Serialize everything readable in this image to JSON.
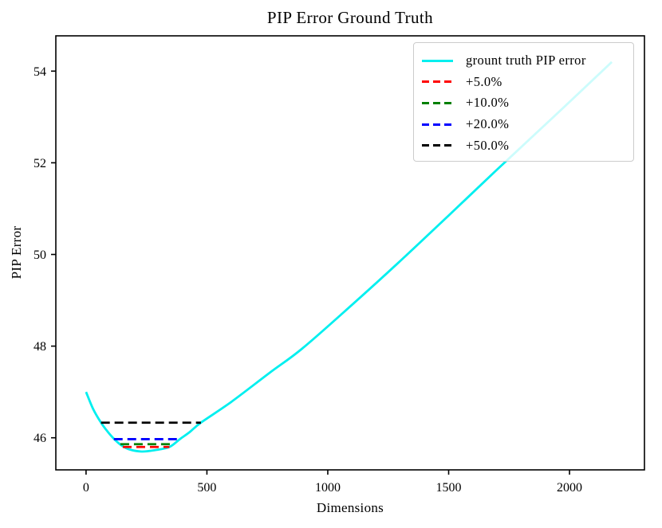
{
  "figure": {
    "background": "#ffffff",
    "text_color": "#000000"
  },
  "chart_data": {
    "type": "line",
    "title": "PIP Error Ground Truth",
    "xlabel": "Dimensions",
    "ylabel": "PIP Error",
    "x_ticks": [
      0,
      500,
      1000,
      1500,
      2000
    ],
    "y_ticks": [
      46,
      48,
      50,
      52,
      54
    ],
    "xlim": [
      -125,
      2310
    ],
    "ylim": [
      45.3,
      54.77
    ],
    "grid": false,
    "legend_position": "upper right",
    "series": [
      {
        "name": "grount truth PIP error",
        "kind": "curve",
        "color": "#00efef",
        "line_style": "solid",
        "points": [
          [
            0,
            47.0
          ],
          [
            30,
            46.62
          ],
          [
            62,
            46.33
          ],
          [
            90,
            46.13
          ],
          [
            115,
            45.98
          ],
          [
            145,
            45.84
          ],
          [
            180,
            45.745
          ],
          [
            230,
            45.7
          ],
          [
            285,
            45.73
          ],
          [
            345,
            45.8
          ],
          [
            388,
            45.97
          ],
          [
            430,
            46.13
          ],
          [
            475,
            46.33
          ],
          [
            600,
            46.78
          ],
          [
            760,
            47.42
          ],
          [
            895,
            47.95
          ],
          [
            1100,
            48.9
          ],
          [
            1290,
            49.81
          ],
          [
            1500,
            50.85
          ],
          [
            1700,
            51.85
          ],
          [
            1950,
            53.08
          ],
          [
            2175,
            54.2
          ]
        ]
      },
      {
        "name": "+5.0%",
        "kind": "hline",
        "color": "#ff0000",
        "line_style": "dashed",
        "level": 45.8,
        "x_range": [
          152,
          345
        ]
      },
      {
        "name": "+10.0%",
        "kind": "hline",
        "color": "#008000",
        "line_style": "dashed",
        "level": 45.86,
        "x_range": [
          142,
          363
        ]
      },
      {
        "name": "+20.0%",
        "kind": "hline",
        "color": "#0000ff",
        "line_style": "dashed",
        "level": 45.97,
        "x_range": [
          115,
          388
        ]
      },
      {
        "name": "+50.0%",
        "kind": "hline",
        "color": "#000000",
        "line_style": "dashed",
        "level": 46.33,
        "x_range": [
          62,
          475
        ]
      }
    ],
    "axis_color": "#000000"
  }
}
